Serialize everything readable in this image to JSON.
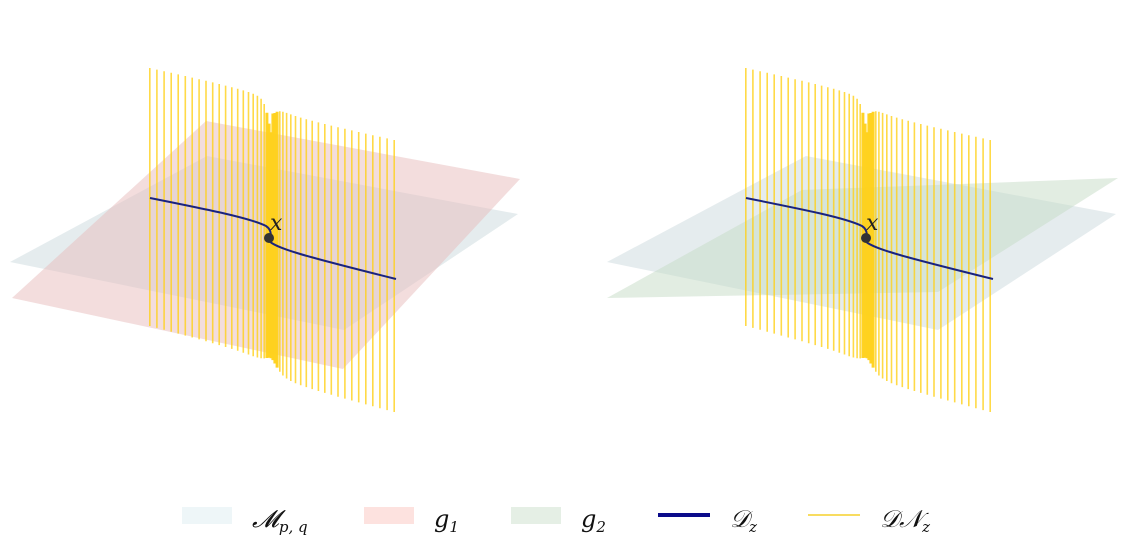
{
  "panels": [
    {
      "name": "left",
      "planes": [
        "manifold",
        "g1"
      ],
      "point_label": "x"
    },
    {
      "name": "right",
      "planes": [
        "manifold",
        "g2"
      ],
      "point_label": "x"
    }
  ],
  "colors": {
    "manifold": "#cfdde0",
    "g1": "#e8bcbc",
    "g2": "#c6dcc6",
    "curve": "#1a237e",
    "lines": "#ffd11a",
    "point": "#333333",
    "legend_manifold": "#eef6f8",
    "legend_g1": "#fde2df",
    "legend_g2": "#e5efe5",
    "legend_curve": "#0b0b8a",
    "legend_lines": "#f8dc60"
  },
  "legend": [
    {
      "key": "manifold",
      "main": "𝓜",
      "sub": "p, q",
      "kind": "patch"
    },
    {
      "key": "g1",
      "main": "g",
      "sub": "1",
      "kind": "patch"
    },
    {
      "key": "g2",
      "main": "g",
      "sub": "2",
      "kind": "patch"
    },
    {
      "key": "curve",
      "main": "𝒟",
      "sub": "z",
      "kind": "line"
    },
    {
      "key": "lines",
      "main": "𝒟𝒩",
      "sub": "z",
      "kind": "thin-line"
    }
  ]
}
